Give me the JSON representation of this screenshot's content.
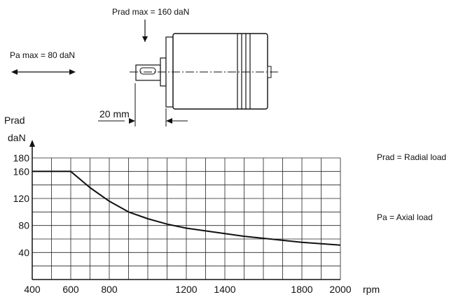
{
  "diagram": {
    "prad_max": "Prad max = 160 daN",
    "pa_max": "Pa max = 80 daN",
    "shaft_distance": "20 mm"
  },
  "legend": {
    "prad": "Prad = Radial load",
    "pa": "Pa = Axial load"
  },
  "chart_data": {
    "type": "line",
    "ylabel": "Prad",
    "yunit": "daN",
    "xunit": "rpm",
    "xlim": [
      400,
      2000
    ],
    "ylim": [
      0,
      180
    ],
    "x_ticks": [
      400,
      600,
      800,
      1200,
      1400,
      1800,
      2000
    ],
    "y_ticks": [
      40,
      80,
      120,
      160,
      180
    ],
    "grid": true,
    "series": [
      {
        "x": [
          400,
          600,
          700,
          800,
          900,
          1000,
          1100,
          1200,
          1300,
          1400,
          1500,
          1600,
          1700,
          1800,
          1900,
          2000
        ],
        "y": [
          160,
          160,
          136,
          116,
          100,
          90,
          82,
          76,
          72,
          68,
          64,
          61,
          58,
          55,
          53,
          51
        ]
      }
    ]
  }
}
